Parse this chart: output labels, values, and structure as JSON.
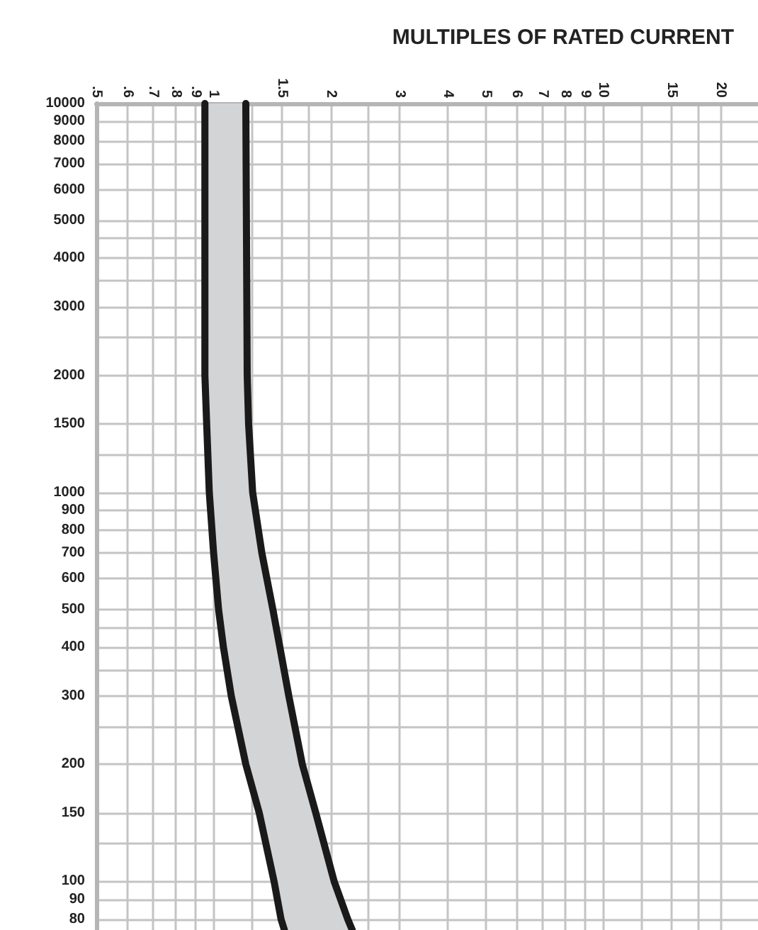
{
  "chart_data": {
    "type": "line",
    "xlabel": "MULTIPLES OF RATED CURRENT",
    "log": "xy",
    "grid": true,
    "marker": "none",
    "line_style": "solid",
    "xlim": [
      0.5,
      25
    ],
    "ylim": [
      75,
      10000
    ],
    "xticks": [
      {
        "value": 0.5,
        "label": ".5"
      },
      {
        "value": 0.6,
        "label": ".6"
      },
      {
        "value": 0.7,
        "label": ".7"
      },
      {
        "value": 0.8,
        "label": ".8"
      },
      {
        "value": 0.9,
        "label": ".9"
      },
      1,
      {
        "value": 1.25,
        "label": null
      },
      1.5,
      {
        "value": 1.75,
        "label": null
      },
      2,
      {
        "value": 2.5,
        "label": null
      },
      3,
      4,
      5,
      6,
      7,
      8,
      9,
      10,
      {
        "value": 12.5,
        "label": null
      },
      15,
      {
        "value": 17.5,
        "label": null
      },
      20
    ],
    "yticks": [
      80,
      90,
      100,
      {
        "value": 125,
        "label": null
      },
      150,
      200,
      {
        "value": 250,
        "label": null
      },
      300,
      {
        "value": 350,
        "label": null
      },
      400,
      {
        "value": 450,
        "label": null
      },
      500,
      600,
      700,
      800,
      900,
      1000,
      {
        "value": 1250,
        "label": null
      },
      1500,
      2000,
      {
        "value": 2500,
        "label": null
      },
      3000,
      {
        "value": 3500,
        "label": null
      },
      4000,
      {
        "value": 4500,
        "label": null
      },
      5000,
      6000,
      7000,
      8000,
      9000,
      10000
    ],
    "series": [
      {
        "color": "#1a1a1a",
        "x": [
          0.95,
          0.95,
          0.96,
          0.975,
          1.0,
          1.03,
          1.06,
          1.11,
          1.21,
          1.31,
          1.43,
          1.49,
          1.52
        ],
        "values": [
          10000,
          2000,
          1500,
          1000,
          700,
          500,
          400,
          300,
          200,
          150,
          100,
          80,
          75
        ]
      },
      {
        "color": "#1a1a1a",
        "x": [
          1.21,
          1.22,
          1.23,
          1.26,
          1.33,
          1.42,
          1.48,
          1.56,
          1.69,
          1.83,
          2.04,
          2.21,
          2.27
        ],
        "values": [
          10000,
          2000,
          1500,
          1000,
          700,
          500,
          400,
          300,
          200,
          150,
          100,
          80,
          75
        ]
      }
    ]
  }
}
